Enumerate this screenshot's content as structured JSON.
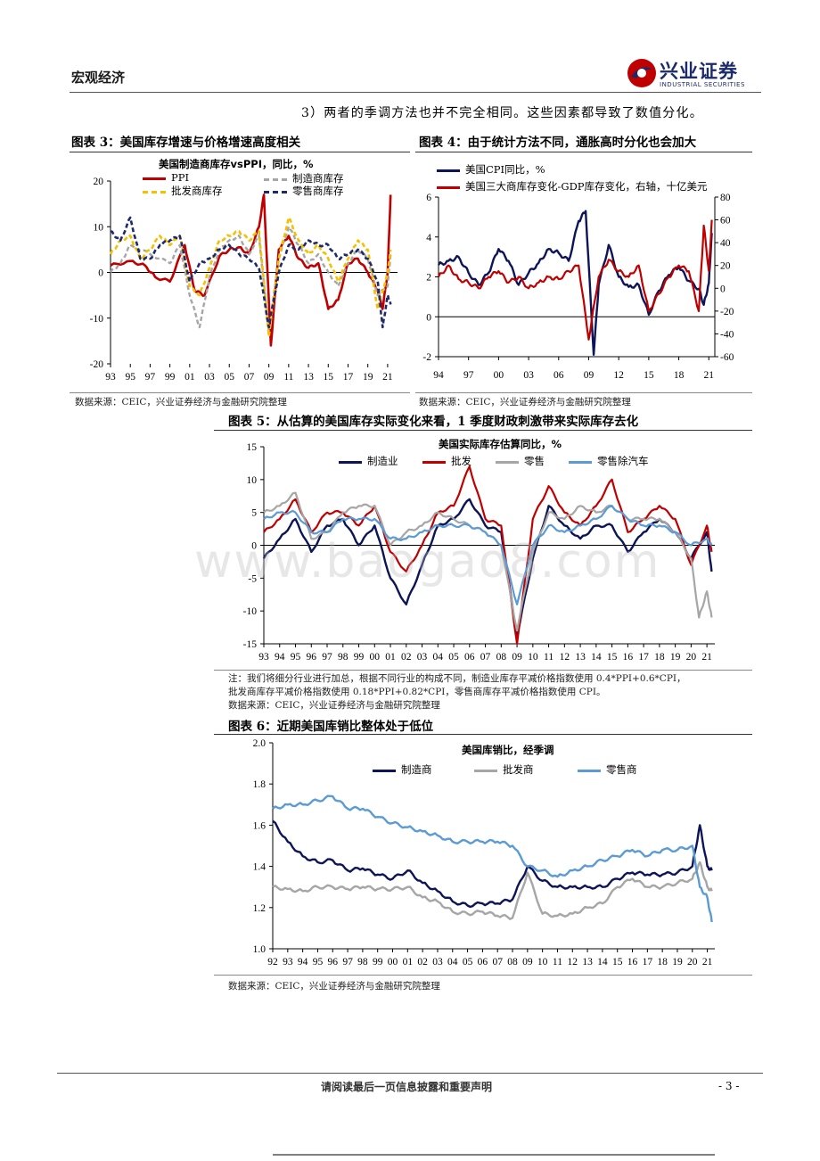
{
  "header": {
    "section": "宏观经济",
    "brand_cn": "兴业证券",
    "brand_en": "INDUSTRIAL SECURITIES"
  },
  "intro_text": "3）两者的季调方法也并不完全相同。这些因素都导致了数值分化。",
  "watermark": "www.baogao8.com",
  "colors": {
    "red": "#c00000",
    "gray": "#a6a6a6",
    "gold": "#f5c000",
    "navy": "#1f2a6b",
    "dark_navy": "#0d1457",
    "light_blue": "#5b9bd5"
  },
  "fig3": {
    "heading": "图表 3：美国库存增速与价格增速高度相关",
    "source": "数据来源：CEIC，兴业证券经济与金融研究院整理",
    "chart_data": {
      "type": "line",
      "title": "美国制造商库存vsPPI，同比，%",
      "ylim": [
        -20,
        20
      ],
      "yticks": [
        "20",
        "10",
        "0",
        "-10",
        "-20"
      ],
      "xticks": [
        "93",
        "95",
        "97",
        "99",
        "01",
        "03",
        "05",
        "07",
        "09",
        "11",
        "13",
        "15",
        "17",
        "19",
        "21"
      ],
      "series": [
        {
          "name": "PPI",
          "x": [
            1993,
            1995,
            1996.5,
            1997.5,
            1999,
            2000.5,
            2001.5,
            2002.5,
            2004,
            2005,
            2006,
            2007,
            2008,
            2008.5,
            2009.2,
            2010,
            2011,
            2012,
            2013,
            2014,
            2015,
            2016,
            2017,
            2018,
            2019,
            2020,
            2020.5,
            2021,
            2021.3
          ],
          "values": [
            1.5,
            2.5,
            1.5,
            -1,
            -2,
            6,
            -4,
            -5,
            3.5,
            5,
            5.5,
            4,
            10,
            17,
            -16,
            5,
            8,
            3,
            1,
            2,
            -8,
            -6,
            2,
            3,
            0,
            -4,
            -8,
            0,
            17
          ]
        },
        {
          "name": "制造商库存",
          "x": [
            1993,
            1994,
            1995,
            1997,
            1999,
            2000,
            2001,
            2002,
            2003,
            2004,
            2005,
            2006,
            2007,
            2008,
            2009,
            2010,
            2011,
            2012,
            2013,
            2014,
            2015,
            2016,
            2017,
            2018,
            2019,
            2020,
            2021,
            2021.3
          ],
          "values": [
            0,
            2,
            6,
            4,
            2,
            6,
            -5,
            -12,
            -1,
            5,
            7,
            8,
            4,
            8,
            -13,
            3,
            10,
            6,
            2,
            4,
            0,
            -3,
            2,
            5,
            3,
            -5,
            -3,
            4
          ]
        },
        {
          "name": "批发商库存",
          "x": [
            1993,
            1994,
            1995,
            1996,
            1997,
            1998,
            1999,
            2000,
            2001,
            2002,
            2003,
            2004,
            2005,
            2006,
            2007,
            2008,
            2009,
            2010,
            2011,
            2012,
            2013,
            2014,
            2015,
            2016,
            2017,
            2018,
            2019,
            2020,
            2021,
            2021.3
          ],
          "values": [
            4,
            7,
            8,
            3,
            5,
            8,
            6,
            8,
            -3,
            -5,
            1,
            7,
            8,
            9,
            7,
            9,
            -14,
            3,
            12,
            7,
            4,
            6,
            3,
            -2,
            3,
            7,
            5,
            -8,
            0,
            5
          ]
        },
        {
          "name": "零售商库存",
          "x": [
            1993,
            1994,
            1995,
            1996,
            1997,
            1998,
            1999,
            2000,
            2001,
            2002,
            2003,
            2004,
            2005,
            2006,
            2007,
            2008,
            2009,
            2010,
            2011,
            2012,
            2013,
            2014,
            2015,
            2016,
            2017,
            2018,
            2019,
            2020,
            2020.5,
            2021,
            2021.3
          ],
          "values": [
            9,
            7,
            12,
            3,
            3,
            6,
            7,
            8,
            -2,
            2,
            3,
            5,
            6,
            4,
            3,
            1,
            -12,
            0,
            6,
            5,
            7,
            6,
            6,
            3,
            4,
            5,
            3,
            -2,
            -12,
            -5,
            -7
          ]
        }
      ]
    }
  },
  "fig4": {
    "heading": "图表 4：由于统计方法不同，通胀高时分化也会加大",
    "source": "数据来源：CEIC，兴业证券经济与金融研究院整理",
    "chart_data": {
      "type": "line",
      "ylim": [
        -2,
        6
      ],
      "y2lim": [
        -60,
        80
      ],
      "yticks": [
        "6",
        "4",
        "2",
        "0",
        "-2"
      ],
      "y2ticks": [
        "80",
        "60",
        "40",
        "20",
        "0",
        "-20",
        "-40",
        "-60"
      ],
      "xticks": [
        "94",
        "97",
        "00",
        "03",
        "06",
        "09",
        "12",
        "15",
        "18",
        "21"
      ],
      "series": [
        {
          "name": "美国CPI同比，%",
          "axis": "left",
          "x": [
            1994,
            1995,
            1996,
            1997,
            1998,
            1999,
            2000,
            2001,
            2002,
            2003,
            2004,
            2005,
            2006,
            2007,
            2008,
            2008.7,
            2009.5,
            2010,
            2011,
            2012,
            2013,
            2014,
            2015,
            2016,
            2017,
            2018,
            2019,
            2020,
            2020.5,
            2021,
            2021.3
          ],
          "values": [
            2.6,
            2.8,
            3.0,
            2.2,
            1.6,
            2.2,
            3.4,
            2.8,
            1.6,
            2.2,
            2.7,
            3.4,
            3.2,
            2.8,
            4.8,
            5.3,
            -1.9,
            1.6,
            3.6,
            2.0,
            1.5,
            1.6,
            0.1,
            1.3,
            2.1,
            2.5,
            1.8,
            1.4,
            0.6,
            1.7,
            4.2
          ]
        },
        {
          "name": "美国三大商库存变化-GDP库存变化，右轴，十亿美元",
          "axis": "right",
          "x": [
            1994,
            1995,
            1996,
            1997,
            1998,
            1999,
            2000,
            2001,
            2002,
            2003,
            2004,
            2005,
            2006,
            2007,
            2008,
            2009,
            2010,
            2011,
            2012,
            2013,
            2014,
            2015,
            2016,
            2017,
            2018,
            2019,
            2020,
            2020.5,
            2021,
            2021.3
          ],
          "values": [
            10,
            20,
            8,
            5,
            0,
            10,
            15,
            5,
            10,
            0,
            5,
            10,
            8,
            15,
            20,
            -45,
            10,
            25,
            15,
            10,
            20,
            -20,
            -5,
            10,
            20,
            15,
            -20,
            55,
            15,
            60
          ]
        }
      ]
    }
  },
  "fig5": {
    "heading": "图表 5：从估算的美国库存实际变化来看，1 季度财政刺激带来实际库存去化",
    "note_lines": [
      "注：我们将细分行业进行加总，根据不同行业的构成不同，制造业库存平减价格指数使用 0.4*PPI+0.6*CPI，",
      "批发商库存平减价格指数使用 0.18*PPI+0.82*CPI，零售商库存平减价格指数使用 CPI。",
      "数据来源：CEIC，兴业证券经济与金融研究院整理"
    ],
    "chart_data": {
      "type": "line",
      "title": "美国实际库存估算同比，%",
      "ylim": [
        -15,
        15
      ],
      "yticks": [
        "15",
        "10",
        "5",
        "0",
        "-5",
        "-10",
        "-15"
      ],
      "xticks": [
        "93",
        "94",
        "95",
        "96",
        "97",
        "98",
        "99",
        "00",
        "01",
        "02",
        "03",
        "04",
        "05",
        "06",
        "07",
        "08",
        "09",
        "10",
        "11",
        "12",
        "13",
        "14",
        "15",
        "16",
        "17",
        "18",
        "19",
        "20",
        "21"
      ],
      "series": [
        {
          "name": "制造业",
          "x": [
            1993,
            1994,
            1995,
            1996,
            1997,
            1998,
            1999,
            2000,
            2001,
            2002,
            2003,
            2004,
            2005,
            2006,
            2007,
            2008,
            2009,
            2010,
            2011,
            2012,
            2013,
            2014,
            2015,
            2016,
            2017,
            2018,
            2019,
            2020,
            2021,
            2021.3
          ],
          "values": [
            -2,
            1,
            4,
            -1,
            3,
            4,
            0,
            3,
            -5,
            -9,
            -3,
            3,
            4,
            7,
            3,
            2,
            -14,
            -2,
            6,
            3,
            1,
            3,
            3,
            -1,
            2,
            4,
            2,
            -2,
            2,
            -4
          ]
        },
        {
          "name": "批发",
          "x": [
            1993,
            1994,
            1995,
            1996,
            1997,
            1998,
            1999,
            2000,
            2001,
            2002,
            2003,
            2004,
            2005,
            2006,
            2007,
            2008,
            2009,
            2010,
            2011,
            2012,
            2013,
            2014,
            2015,
            2016,
            2017,
            2018,
            2019,
            2020,
            2021,
            2021.3
          ],
          "values": [
            2,
            4,
            7,
            2,
            5,
            5,
            3,
            6,
            -1,
            -4,
            0,
            5,
            6,
            12,
            4,
            3,
            -15,
            4,
            9,
            5,
            3,
            6,
            10,
            2,
            4,
            6,
            4,
            -3,
            3,
            -1
          ]
        },
        {
          "name": "零售",
          "x": [
            1993,
            1994,
            1995,
            1996,
            1997,
            1998,
            1999,
            2000,
            2001,
            2002,
            2003,
            2004,
            2005,
            2006,
            2007,
            2008,
            2009,
            2010,
            2011,
            2012,
            2013,
            2014,
            2015,
            2016,
            2017,
            2018,
            2019,
            2020,
            2020.5,
            2021,
            2021.3
          ],
          "values": [
            5,
            6,
            8,
            1,
            2,
            5,
            6,
            6,
            0,
            2,
            3,
            5,
            4,
            3,
            2,
            0,
            -13,
            -1,
            5,
            4,
            6,
            5,
            6,
            4,
            4,
            4,
            2,
            -2,
            -11,
            -7,
            -11
          ]
        },
        {
          "name": "零售除汽车",
          "x": [
            1993,
            1994,
            1995,
            1996,
            1997,
            1998,
            1999,
            2000,
            2001,
            2002,
            2003,
            2004,
            2005,
            2006,
            2007,
            2008,
            2009,
            2010,
            2011,
            2012,
            2013,
            2014,
            2015,
            2016,
            2017,
            2018,
            2019,
            2020,
            2021,
            2021.3
          ],
          "values": [
            4,
            5,
            5,
            2,
            2,
            4,
            4,
            4,
            1,
            1,
            2,
            3,
            3,
            3,
            2,
            0,
            -9,
            0,
            3,
            2,
            3,
            4,
            6,
            4,
            3,
            3,
            2,
            0,
            1,
            0
          ]
        }
      ]
    }
  },
  "fig6": {
    "heading": "图表 6：近期美国库销比整体处于低位",
    "source": "数据来源：CEIC，兴业证券经济与金融研究院整理",
    "chart_data": {
      "type": "line",
      "title": "美国库销比，经季调",
      "ylim": [
        1.0,
        2.0
      ],
      "yticks": [
        "2.0",
        "1.8",
        "1.6",
        "1.4",
        "1.2",
        "1.0"
      ],
      "xticks": [
        "92",
        "93",
        "94",
        "95",
        "96",
        "97",
        "98",
        "99",
        "00",
        "01",
        "02",
        "03",
        "04",
        "05",
        "06",
        "07",
        "08",
        "09",
        "10",
        "11",
        "12",
        "13",
        "14",
        "15",
        "16",
        "17",
        "18",
        "19",
        "20",
        "21"
      ],
      "series": [
        {
          "name": "制造商",
          "x": [
            1992,
            1993,
            1994,
            1995,
            1996,
            1997,
            1998,
            1999,
            2000,
            2001,
            2002,
            2003,
            2004,
            2005,
            2006,
            2007,
            2008,
            2009,
            2010,
            2011,
            2012,
            2013,
            2014,
            2015,
            2016,
            2017,
            2018,
            2019,
            2020,
            2020.5,
            2021,
            2021.3
          ],
          "values": [
            1.62,
            1.52,
            1.45,
            1.42,
            1.43,
            1.38,
            1.39,
            1.36,
            1.34,
            1.38,
            1.32,
            1.28,
            1.23,
            1.21,
            1.22,
            1.22,
            1.24,
            1.4,
            1.33,
            1.3,
            1.3,
            1.3,
            1.3,
            1.34,
            1.37,
            1.36,
            1.36,
            1.37,
            1.4,
            1.6,
            1.4,
            1.38
          ]
        },
        {
          "name": "批发商",
          "x": [
            1992,
            1993,
            1994,
            1995,
            1996,
            1997,
            1998,
            1999,
            2000,
            2001,
            2002,
            2003,
            2004,
            2005,
            2006,
            2007,
            2008,
            2009,
            2010,
            2011,
            2012,
            2013,
            2014,
            2015,
            2016,
            2017,
            2018,
            2019,
            2020,
            2020.5,
            2021,
            2021.3
          ],
          "values": [
            1.3,
            1.29,
            1.28,
            1.3,
            1.3,
            1.29,
            1.3,
            1.29,
            1.29,
            1.3,
            1.25,
            1.23,
            1.18,
            1.17,
            1.18,
            1.16,
            1.15,
            1.37,
            1.17,
            1.16,
            1.17,
            1.2,
            1.22,
            1.3,
            1.34,
            1.3,
            1.3,
            1.32,
            1.34,
            1.42,
            1.3,
            1.28
          ]
        },
        {
          "name": "零售商",
          "x": [
            1992,
            1993,
            1994,
            1995,
            1996,
            1997,
            1998,
            1999,
            2000,
            2001,
            2002,
            2003,
            2004,
            2005,
            2006,
            2007,
            2008,
            2009,
            2010,
            2011,
            2012,
            2013,
            2014,
            2015,
            2016,
            2017,
            2018,
            2019,
            2020,
            2020.5,
            2021,
            2021.3
          ],
          "values": [
            1.68,
            1.7,
            1.7,
            1.72,
            1.74,
            1.68,
            1.68,
            1.64,
            1.61,
            1.59,
            1.57,
            1.55,
            1.52,
            1.52,
            1.52,
            1.52,
            1.5,
            1.4,
            1.38,
            1.35,
            1.38,
            1.4,
            1.43,
            1.45,
            1.48,
            1.45,
            1.48,
            1.48,
            1.5,
            1.3,
            1.25,
            1.13
          ]
        }
      ]
    }
  },
  "footer": {
    "disclaimer": "请阅读最后一页信息披露和重要声明",
    "page": "- 3 -"
  }
}
